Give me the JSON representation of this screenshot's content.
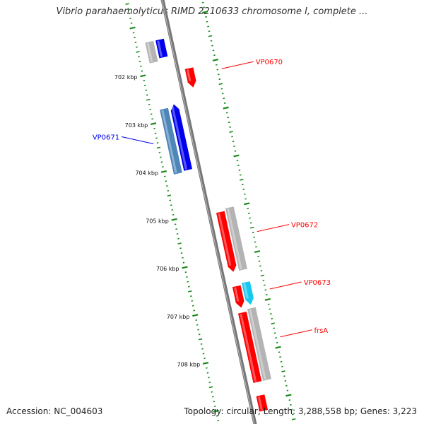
{
  "title": "Vibrio parahaemolyticus RIMD 2210633 chromosome I, complete ...",
  "footer": {
    "accession": "Accession: NC_004603",
    "topology": "Topology: circular; Length: 3,288,558 bp; Genes: 3,223"
  },
  "colors": {
    "backbone": "#777777",
    "tick": "#1a8a1a",
    "forward_gene": "#ff0000",
    "reverse_gene": "#0000ee",
    "cds_grey": "#b4b4b4",
    "steel_blue": "#4d86b8",
    "cyan": "#18c8f0"
  },
  "scale": {
    "unit": "kbp",
    "ticks": [
      {
        "kbp": 702,
        "label": "702 kbp"
      },
      {
        "kbp": 703,
        "label": "703 kbp"
      },
      {
        "kbp": 704,
        "label": "704 kbp"
      },
      {
        "kbp": 705,
        "label": "705 kbp"
      },
      {
        "kbp": 706,
        "label": "706 kbp"
      },
      {
        "kbp": 707,
        "label": "707 kbp"
      },
      {
        "kbp": 708,
        "label": "708 kbp"
      }
    ]
  },
  "features": [
    {
      "id": "top-grey",
      "strand": "-",
      "ring": 2,
      "start_kbp": 701.35,
      "end_kbp": 701.78,
      "color": "cds_grey",
      "arrow": "none"
    },
    {
      "id": "top-blue",
      "strand": "-",
      "ring": 1,
      "start_kbp": 701.35,
      "end_kbp": 701.72,
      "color": "reverse_gene",
      "arrow": "none"
    },
    {
      "id": "VP0670",
      "strand": "+",
      "ring": 1,
      "start_kbp": 702.05,
      "end_kbp": 702.45,
      "color": "forward_gene",
      "arrow": "end"
    },
    {
      "id": "VP0671-cds",
      "strand": "-",
      "ring": 2,
      "start_kbp": 702.75,
      "end_kbp": 704.1,
      "color": "steel_blue",
      "arrow": "none"
    },
    {
      "id": "VP0671",
      "strand": "-",
      "ring": 1,
      "start_kbp": 702.7,
      "end_kbp": 704.07,
      "color": "reverse_gene",
      "arrow": "start"
    },
    {
      "id": "VP0672",
      "strand": "+",
      "ring": 1,
      "start_kbp": 705.05,
      "end_kbp": 706.3,
      "color": "forward_gene",
      "arrow": "end"
    },
    {
      "id": "VP0672-cds",
      "strand": "+",
      "ring": 2,
      "start_kbp": 705.0,
      "end_kbp": 706.3,
      "color": "cds_grey",
      "arrow": "none"
    },
    {
      "id": "VP0673",
      "strand": "+",
      "ring": 1,
      "start_kbp": 706.6,
      "end_kbp": 707.05,
      "color": "forward_gene",
      "arrow": "end"
    },
    {
      "id": "VP0673-cds",
      "strand": "+",
      "ring": 2,
      "start_kbp": 706.56,
      "end_kbp": 707.03,
      "color": "cyan",
      "arrow": "end"
    },
    {
      "id": "frsA",
      "strand": "+",
      "ring": 1,
      "start_kbp": 707.15,
      "end_kbp": 708.6,
      "color": "forward_gene",
      "arrow": "none"
    },
    {
      "id": "frsA-cds",
      "strand": "+",
      "ring": 2,
      "start_kbp": 707.1,
      "end_kbp": 708.6,
      "color": "cds_grey",
      "arrow": "none"
    },
    {
      "id": "bottom-red",
      "strand": "+",
      "ring": 1,
      "start_kbp": 708.88,
      "end_kbp": 709.2,
      "color": "forward_gene",
      "arrow": "none"
    }
  ],
  "labels": [
    {
      "text": "VP0670",
      "target_kbp": 702.2,
      "side": "right",
      "color": "forward_gene"
    },
    {
      "text": "VP0671",
      "target_kbp": 703.4,
      "side": "left",
      "color": "reverse_gene"
    },
    {
      "text": "VP0672",
      "target_kbp": 705.6,
      "side": "right",
      "color": "forward_gene"
    },
    {
      "text": "VP0673",
      "target_kbp": 706.8,
      "side": "right",
      "color": "forward_gene"
    },
    {
      "text": "frsA",
      "target_kbp": 707.8,
      "side": "right",
      "color": "forward_gene"
    }
  ]
}
